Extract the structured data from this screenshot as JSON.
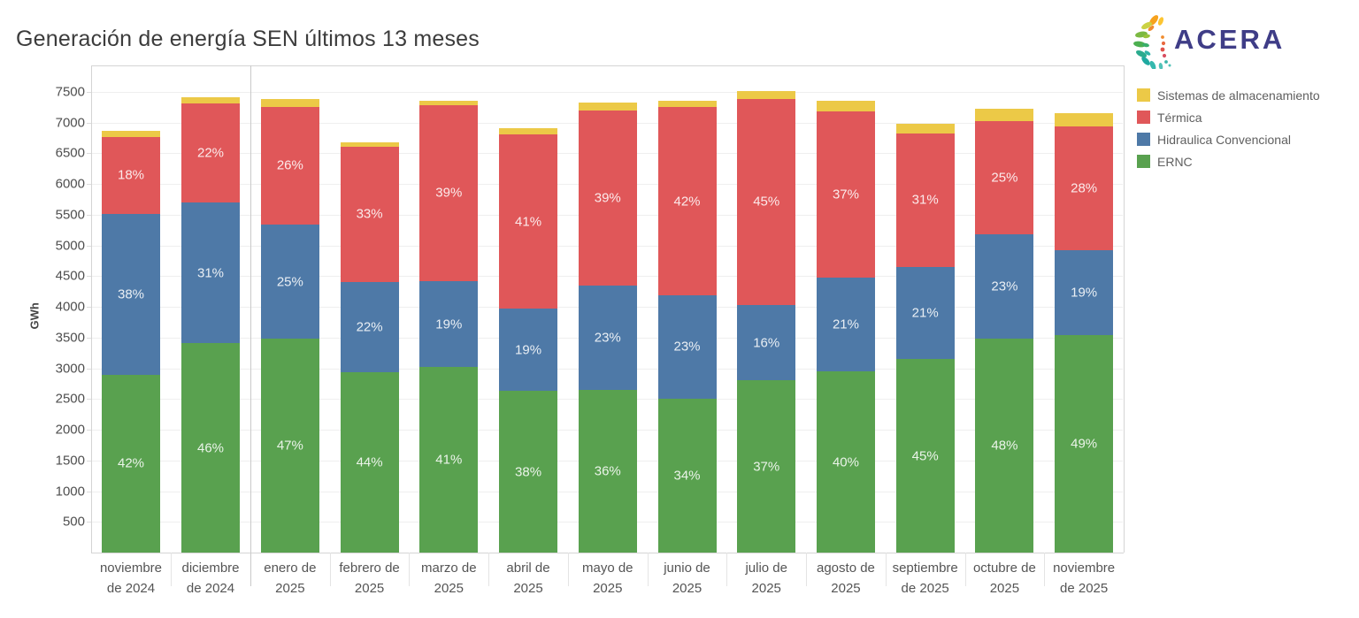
{
  "logo": {
    "text": "ACERA"
  },
  "chart_data": {
    "type": "bar",
    "stacked": true,
    "title": "Generación de energía SEN últimos 13 meses",
    "ylabel": "GWh",
    "unit": "GWh",
    "ylim": [
      0,
      7930
    ],
    "yticks": [
      500,
      1000,
      1500,
      2000,
      2500,
      3000,
      3500,
      4000,
      4500,
      5000,
      5500,
      6000,
      6500,
      7000,
      7500
    ],
    "grid": true,
    "legend_position": "right",
    "pane_split_after_index": 1,
    "categories": [
      "noviembre de 2024",
      "diciembre de 2024",
      "enero de 2025",
      "febrero de 2025",
      "marzo de 2025",
      "abril de 2025",
      "mayo de 2025",
      "junio de 2025",
      "julio de 2025",
      "agosto de 2025",
      "septiembre de 2025",
      "octubre de 2025",
      "noviembre de 2025"
    ],
    "category_labels": [
      [
        "noviembre",
        "de 2024"
      ],
      [
        "diciembre",
        "de 2024"
      ],
      [
        "enero de",
        "2025"
      ],
      [
        "febrero de",
        "2025"
      ],
      [
        "marzo de",
        "2025"
      ],
      [
        "abril de",
        "2025"
      ],
      [
        "mayo de",
        "2025"
      ],
      [
        "junio de",
        "2025"
      ],
      [
        "julio de",
        "2025"
      ],
      [
        "agosto de",
        "2025"
      ],
      [
        "septiembre",
        "de 2025"
      ],
      [
        "octubre de",
        "2025"
      ],
      [
        "noviembre",
        "de 2025"
      ]
    ],
    "series": [
      {
        "name": "ERNC",
        "color": "#59a14f",
        "values": [
          2900,
          3410,
          3480,
          2940,
          3020,
          2630,
          2650,
          2510,
          2800,
          2950,
          3150,
          3490,
          3540
        ],
        "pct_labels": [
          "42%",
          "46%",
          "47%",
          "44%",
          "41%",
          "38%",
          "36%",
          "34%",
          "37%",
          "40%",
          "45%",
          "48%",
          "49%"
        ]
      },
      {
        "name": "Hidraulica Convencional",
        "color": "#4e79a7",
        "values": [
          2620,
          2290,
          1860,
          1470,
          1400,
          1340,
          1700,
          1680,
          1230,
          1530,
          1500,
          1690,
          1390
        ],
        "pct_labels": [
          "38%",
          "31%",
          "25%",
          "22%",
          "19%",
          "19%",
          "23%",
          "23%",
          "16%",
          "21%",
          "21%",
          "23%",
          "19%"
        ]
      },
      {
        "name": "Térmica",
        "color": "#e05759",
        "values": [
          1240,
          1610,
          1920,
          2200,
          2870,
          2840,
          2850,
          3060,
          3360,
          2710,
          2180,
          1840,
          2010
        ],
        "pct_labels": [
          "18%",
          "22%",
          "26%",
          "33%",
          "39%",
          "41%",
          "39%",
          "42%",
          "45%",
          "37%",
          "31%",
          "25%",
          "28%"
        ]
      },
      {
        "name": "Sistemas de almacenamiento",
        "color": "#ecc947",
        "values": [
          110,
          100,
          120,
          70,
          70,
          100,
          130,
          110,
          130,
          170,
          150,
          210,
          220
        ],
        "pct_labels": null
      }
    ],
    "totals": [
      6870,
      7410,
      7380,
      6680,
      7360,
      6910,
      7330,
      7360,
      7520,
      7360,
      6980,
      7230,
      7160
    ],
    "legend": [
      {
        "label": "Sistemas de almacenamiento",
        "color": "#ecc947"
      },
      {
        "label": "Térmica",
        "color": "#e05759"
      },
      {
        "label": "Hidraulica Convencional",
        "color": "#4e79a7"
      },
      {
        "label": "ERNC",
        "color": "#59a14f"
      }
    ]
  }
}
